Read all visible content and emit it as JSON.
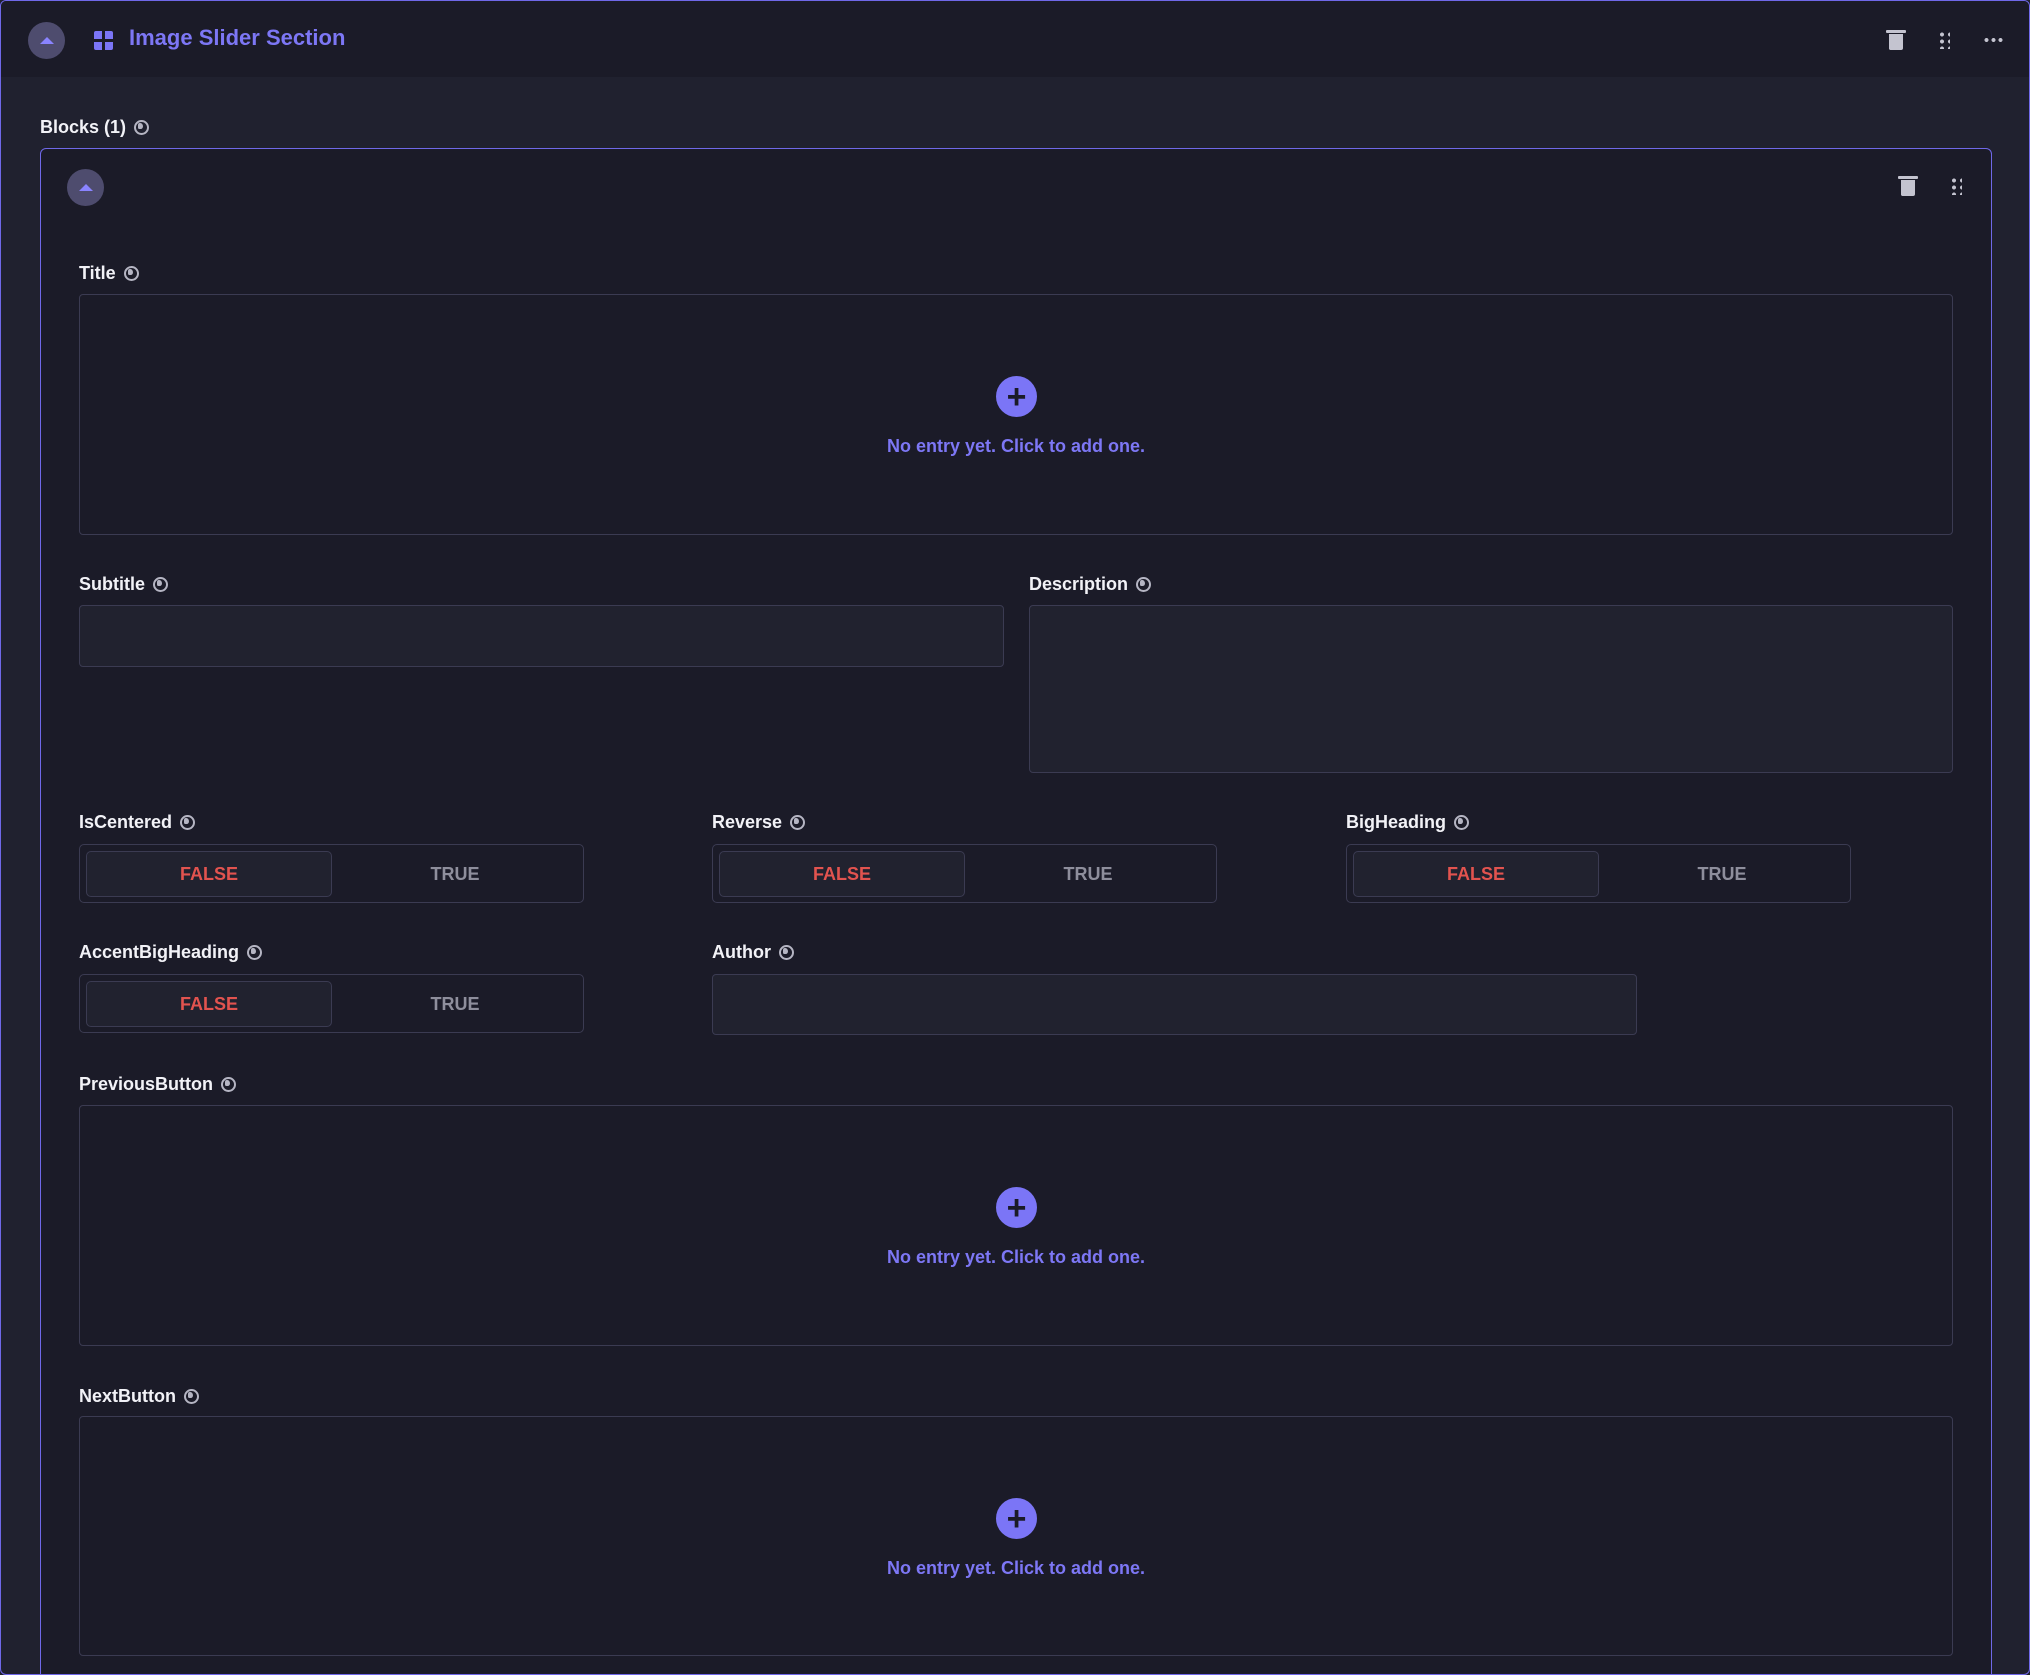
{
  "header": {
    "title": "Image Slider Section",
    "icon": "grid-icon",
    "actions": [
      "trash-icon",
      "drag-handle-icon",
      "more-icon"
    ]
  },
  "blocks": {
    "label": "Blocks (1)"
  },
  "block": {
    "fields": {
      "title": {
        "label": "Title",
        "empty_text": "No entry yet. Click to add one."
      },
      "subtitle": {
        "label": "Subtitle",
        "value": ""
      },
      "description": {
        "label": "Description",
        "value": ""
      },
      "is_centered": {
        "label": "IsCentered",
        "false_label": "FALSE",
        "true_label": "TRUE",
        "value": false
      },
      "reverse": {
        "label": "Reverse",
        "false_label": "FALSE",
        "true_label": "TRUE",
        "value": false
      },
      "big_heading": {
        "label": "BigHeading",
        "false_label": "FALSE",
        "true_label": "TRUE",
        "value": false
      },
      "accent_big_heading": {
        "label": "AccentBigHeading",
        "false_label": "FALSE",
        "true_label": "TRUE",
        "value": false
      },
      "author": {
        "label": "Author",
        "value": ""
      },
      "previous_button": {
        "label": "PreviousButton",
        "empty_text": "No entry yet. Click to add one."
      },
      "next_button": {
        "label": "NextButton",
        "empty_text": "No entry yet. Click to add one."
      }
    }
  },
  "colors": {
    "accent": "#7b75f6",
    "false_active": "#e2534f",
    "background": "#1b1b28",
    "border": "#6f68e8"
  }
}
